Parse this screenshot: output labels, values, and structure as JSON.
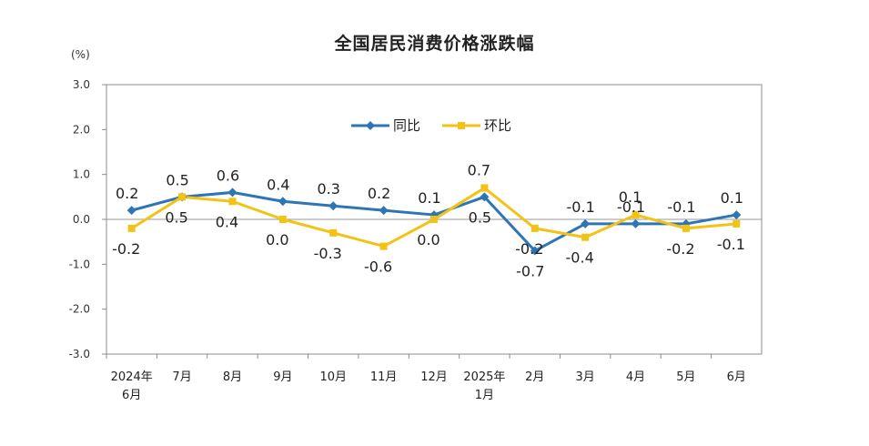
{
  "chart_data": {
    "type": "line",
    "title": "全国居民消费价格涨跌幅",
    "ylabel": "(%)",
    "ylim": [
      -3.0,
      3.0
    ],
    "yticks": [
      "3.0",
      "2.0",
      "1.0",
      "0.0",
      "-1.0",
      "-2.0",
      "-3.0"
    ],
    "categories": [
      [
        "2024年",
        "6月"
      ],
      [
        "7月"
      ],
      [
        "8月"
      ],
      [
        "9月"
      ],
      [
        "10月"
      ],
      [
        "11月"
      ],
      [
        "12月"
      ],
      [
        "2025年",
        "1月"
      ],
      [
        "2月"
      ],
      [
        "3月"
      ],
      [
        "4月"
      ],
      [
        "5月"
      ],
      [
        "6月"
      ]
    ],
    "legend_position": "top-center",
    "series": [
      {
        "name": "同比",
        "color": "#2E75B6",
        "marker": "diamond",
        "values": [
          0.2,
          0.5,
          0.6,
          0.4,
          0.3,
          0.2,
          0.1,
          0.5,
          -0.7,
          -0.1,
          -0.1,
          -0.1,
          0.1
        ],
        "labels": [
          "0.2",
          "0.5",
          "0.6",
          "0.4",
          "0.3",
          "0.2",
          "0.1",
          "0.5",
          "-0.7",
          "-0.1",
          "-0.1",
          "-0.1",
          "0.1"
        ]
      },
      {
        "name": "环比",
        "color": "#F2C314",
        "marker": "square",
        "values": [
          -0.2,
          0.5,
          0.4,
          0.0,
          -0.3,
          -0.6,
          0.0,
          0.7,
          -0.2,
          -0.4,
          0.1,
          -0.2,
          -0.1
        ],
        "labels": [
          "-0.2",
          "0.5",
          "0.4",
          "0.0",
          "-0.3",
          "-0.6",
          "0.0",
          "0.7",
          "-0.2",
          "-0.4",
          "0.1",
          "-0.2",
          "-0.1"
        ]
      }
    ]
  }
}
